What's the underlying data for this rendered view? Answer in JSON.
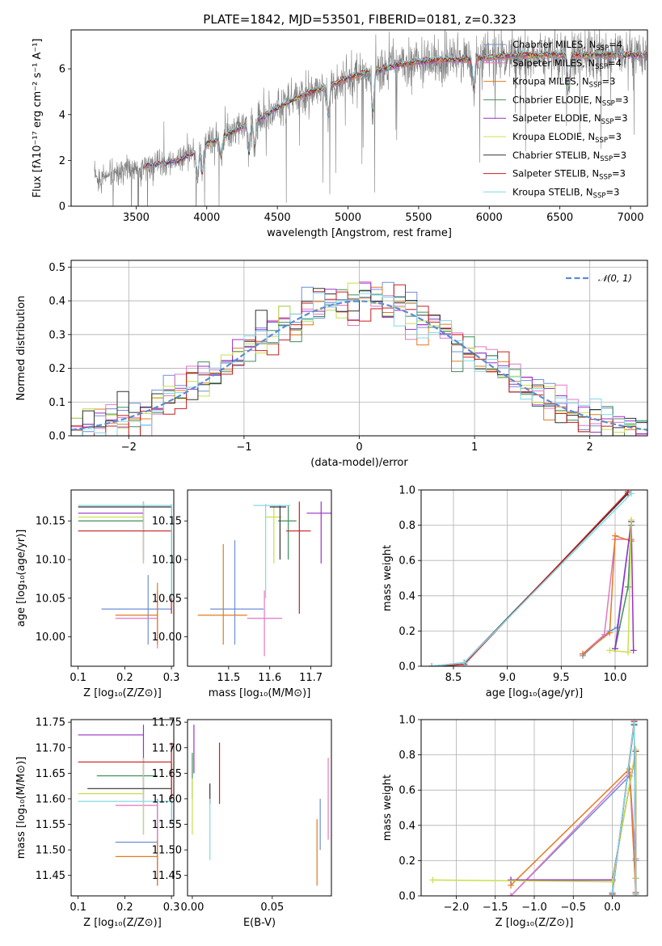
{
  "title": "PLATE=1842, MJD=53501, FIBERID=0181, z=0.323",
  "models": [
    {
      "key": "cm",
      "label": "Chabrier MILES, N",
      "sub": "SSP",
      "tail": "=4",
      "color": "#6d8fd6"
    },
    {
      "key": "sm",
      "label": "Salpeter MILES, N",
      "sub": "SSP",
      "tail": "=4",
      "color": "#e377c2"
    },
    {
      "key": "km",
      "label": "Kroupa MILES, N",
      "sub": "SSP",
      "tail": "=3",
      "color": "#e07b1f"
    },
    {
      "key": "ce",
      "label": "Chabrier ELODIE, N",
      "sub": "SSP",
      "tail": "=3",
      "color": "#3f8f5a"
    },
    {
      "key": "se",
      "label": "Salpeter ELODIE, N",
      "sub": "SSP",
      "tail": "=3",
      "color": "#9b30c8"
    },
    {
      "key": "ke",
      "label": "Kroupa ELODIE, N",
      "sub": "SSP",
      "tail": "=3",
      "color": "#c8e04a"
    },
    {
      "key": "cs",
      "label": "Chabrier STELIB, N",
      "sub": "SSP",
      "tail": "=3",
      "color": "#333333"
    },
    {
      "key": "ss",
      "label": "Salpeter STELIB, N",
      "sub": "SSP",
      "tail": "=3",
      "color": "#c81e1e"
    },
    {
      "key": "ks",
      "label": "Kroupa STELIB, N",
      "sub": "SSP",
      "tail": "=3",
      "color": "#80d8e8"
    }
  ],
  "chart_data": [
    {
      "id": "spectrum",
      "type": "line",
      "xlabel": "wavelength [Angstrom, rest frame]",
      "ylabel": "Flux [fλ10⁻¹⁷ erg cm⁻² s⁻¹ A⁻¹]",
      "xlim": [
        3040,
        7120
      ],
      "ylim": [
        0,
        7.7
      ],
      "xticks": [
        3500,
        4000,
        4500,
        5000,
        5500,
        6000,
        6500,
        7000
      ],
      "yticks": [
        0,
        2,
        4,
        6
      ],
      "grid": false,
      "legend": "top-right",
      "data_color": "#808080",
      "continuum": {
        "x": [
          3200,
          3300,
          3400,
          3500,
          3600,
          3700,
          3800,
          3900,
          4000,
          4100,
          4200,
          4300,
          4400,
          4500,
          4600,
          4700,
          4800,
          4900,
          5000,
          5100,
          5200,
          5300,
          5400,
          5500,
          5600,
          5700,
          5800,
          5900,
          6000,
          6100,
          6200,
          6300,
          6400,
          6500,
          6600,
          6700,
          6800,
          6900,
          7000,
          7100
        ],
        "y": [
          1.2,
          1.35,
          1.5,
          1.6,
          1.8,
          1.9,
          2.0,
          2.3,
          2.7,
          3.0,
          3.3,
          3.6,
          3.9,
          4.3,
          4.6,
          4.9,
          5.1,
          5.3,
          5.6,
          5.8,
          5.9,
          6.1,
          6.2,
          6.3,
          6.35,
          6.4,
          6.4,
          6.45,
          6.5,
          6.55,
          6.6,
          6.6,
          6.6,
          6.6,
          6.6,
          6.6,
          6.6,
          6.6,
          6.6,
          6.6
        ]
      },
      "model_start": [
        3550,
        3550,
        3550,
        3550,
        3550,
        3900,
        3550,
        3550,
        3550
      ]
    },
    {
      "id": "residuals",
      "type": "histogram",
      "xlabel": "(data-model)/error",
      "ylabel": "Normed distribution",
      "xlim": [
        -2.5,
        2.5
      ],
      "ylim": [
        0,
        0.52
      ],
      "xticks": [
        -2,
        -1,
        0,
        1,
        2
      ],
      "yticks": [
        0.0,
        0.1,
        0.2,
        0.3,
        0.4,
        0.5
      ],
      "grid": true,
      "bin_width": 0.1,
      "normal_label": "𝒩(0, 1)",
      "normal_color": "#5b8bd6",
      "legend": "top-right"
    },
    {
      "id": "age-vs-z",
      "type": "errorbar",
      "xlabel": "Z [log₁₀(Z/Z⊙)]",
      "ylabel": "age  [log₁₀(age/yr)]",
      "xlim": [
        0.085,
        0.305
      ],
      "ylim": [
        9.962,
        10.19
      ],
      "xticks": [
        0.1,
        0.2,
        0.3
      ],
      "yticks": [
        10.0,
        10.05,
        10.1,
        10.15
      ],
      "grid": false,
      "points": [
        {
          "m": "cm",
          "x": 0.25,
          "y": 10.036,
          "xerr": [
            0.15,
            0.3
          ],
          "yerr": [
            9.99,
            10.08
          ]
        },
        {
          "m": "sm",
          "x": 0.27,
          "y": 10.024,
          "xerr": [
            0.18,
            0.27
          ],
          "yerr": [
            9.985,
            10.06
          ]
        },
        {
          "m": "km",
          "x": 0.27,
          "y": 10.028,
          "xerr": [
            0.18,
            0.27
          ],
          "yerr": [
            9.99,
            10.07
          ]
        },
        {
          "m": "ce",
          "x": 0.24,
          "y": 10.15,
          "xerr": [
            0.1,
            0.24
          ],
          "yerr": [
            10.095,
            10.175
          ]
        },
        {
          "m": "se",
          "x": 0.24,
          "y": 10.16,
          "xerr": [
            0.1,
            0.24
          ],
          "yerr": [
            10.1,
            10.175
          ]
        },
        {
          "m": "ke",
          "x": 0.24,
          "y": 10.155,
          "xerr": [
            0.1,
            0.24
          ],
          "yerr": [
            10.095,
            10.175
          ]
        },
        {
          "m": "cs",
          "x": 0.3,
          "y": 10.168,
          "xerr": [
            0.1,
            0.3
          ],
          "yerr": [
            10.05,
            10.17
          ]
        },
        {
          "m": "ss",
          "x": 0.3,
          "y": 10.137,
          "xerr": [
            0.1,
            0.3
          ],
          "yerr": [
            10.03,
            10.14
          ]
        },
        {
          "m": "ks",
          "x": 0.3,
          "y": 10.17,
          "xerr": [
            0.1,
            0.3
          ],
          "yerr": [
            10.05,
            10.172
          ]
        }
      ]
    },
    {
      "id": "age-vs-mass",
      "type": "errorbar",
      "xlabel": "mass [log₁₀(M/M⊙)]",
      "ylabel": "",
      "xlim": [
        11.4,
        11.75
      ],
      "ylim": [
        9.962,
        10.19
      ],
      "xticks": [
        11.5,
        11.6,
        11.7
      ],
      "yticks": [
        10.0,
        10.05,
        10.1,
        10.15
      ],
      "grid": false,
      "points": [
        {
          "m": "cm",
          "x": 11.515,
          "y": 10.036,
          "xerr": [
            11.455,
            11.585
          ],
          "yerr": [
            9.99,
            10.125
          ]
        },
        {
          "m": "sm",
          "x": 11.587,
          "y": 10.024,
          "xerr": [
            11.545,
            11.63
          ],
          "yerr": [
            9.975,
            10.06
          ]
        },
        {
          "m": "km",
          "x": 11.487,
          "y": 10.028,
          "xerr": [
            11.425,
            11.545
          ],
          "yerr": [
            9.99,
            10.12
          ]
        },
        {
          "m": "ce",
          "x": 11.645,
          "y": 10.15,
          "xerr": [
            11.62,
            11.665
          ],
          "yerr": [
            10.1,
            10.17
          ]
        },
        {
          "m": "se",
          "x": 11.725,
          "y": 10.16,
          "xerr": [
            11.69,
            11.76
          ],
          "yerr": [
            10.095,
            10.175
          ]
        },
        {
          "m": "ke",
          "x": 11.61,
          "y": 10.155,
          "xerr": [
            11.59,
            11.63
          ],
          "yerr": [
            10.095,
            10.17
          ]
        },
        {
          "m": "cs",
          "x": 11.625,
          "y": 10.168,
          "xerr": [
            11.6,
            11.64
          ],
          "yerr": [
            10.1,
            10.17
          ]
        },
        {
          "m": "ss",
          "x": 11.672,
          "y": 10.137,
          "xerr": [
            11.64,
            11.7
          ],
          "yerr": [
            10.03,
            10.175
          ]
        },
        {
          "m": "ks",
          "x": 11.59,
          "y": 10.17,
          "xerr": [
            11.56,
            11.65
          ],
          "yerr": [
            10.05,
            10.172
          ]
        }
      ]
    },
    {
      "id": "mass-vs-z",
      "type": "errorbar",
      "xlabel": "Z [log₁₀(Z/Z⊙)]",
      "ylabel": "mass [log₁₀(M/M⊙)]",
      "xlim": [
        0.085,
        0.305
      ],
      "ylim": [
        11.41,
        11.755
      ],
      "xticks": [
        0.1,
        0.2,
        0.3
      ],
      "yticks": [
        11.45,
        11.5,
        11.55,
        11.6,
        11.65,
        11.7,
        11.75
      ],
      "grid": false,
      "points": [
        {
          "m": "cm",
          "x": 0.27,
          "y": 11.515,
          "xerr": [
            0.18,
            0.27
          ],
          "yerr": [
            11.43,
            11.6
          ]
        },
        {
          "m": "sm",
          "x": 0.27,
          "y": 11.587,
          "xerr": [
            0.18,
            0.27
          ],
          "yerr": [
            11.43,
            11.6
          ]
        },
        {
          "m": "km",
          "x": 0.27,
          "y": 11.487,
          "xerr": [
            0.18,
            0.27
          ],
          "yerr": [
            11.43,
            11.52
          ]
        },
        {
          "m": "ce",
          "x": 0.24,
          "y": 11.645,
          "xerr": [
            0.14,
            0.27
          ],
          "yerr": [
            11.53,
            11.68
          ]
        },
        {
          "m": "se",
          "x": 0.24,
          "y": 11.725,
          "xerr": [
            0.1,
            0.24
          ],
          "yerr": [
            11.6,
            11.745
          ]
        },
        {
          "m": "ke",
          "x": 0.24,
          "y": 11.61,
          "xerr": [
            0.1,
            0.24
          ],
          "yerr": [
            11.53,
            11.68
          ]
        },
        {
          "m": "cs",
          "x": 0.3,
          "y": 11.62,
          "xerr": [
            0.12,
            0.3
          ],
          "yerr": [
            11.55,
            11.67
          ]
        },
        {
          "m": "ss",
          "x": 0.3,
          "y": 11.672,
          "xerr": [
            0.1,
            0.3
          ],
          "yerr": [
            11.6,
            11.71
          ]
        },
        {
          "m": "ks",
          "x": 0.3,
          "y": 11.595,
          "xerr": [
            0.1,
            0.3
          ],
          "yerr": [
            11.55,
            11.6
          ]
        }
      ]
    },
    {
      "id": "mass-vs-ebv",
      "type": "errorbar",
      "xlabel": "E(B-V)",
      "ylabel": "",
      "xlim": [
        -0.003,
        0.087
      ],
      "ylim": [
        11.41,
        11.755
      ],
      "xticks": [
        0.0,
        0.05
      ],
      "yticks": [
        11.45,
        11.5,
        11.55,
        11.6,
        11.65,
        11.7,
        11.75
      ],
      "grid": false,
      "points": [
        {
          "m": "cm",
          "x": 0.08,
          "y": 11.515,
          "yerr": [
            11.5,
            11.6
          ]
        },
        {
          "m": "sm",
          "x": 0.085,
          "y": 11.587,
          "yerr": [
            11.52,
            11.68
          ]
        },
        {
          "m": "km",
          "x": 0.078,
          "y": 11.487,
          "yerr": [
            11.43,
            11.56
          ]
        },
        {
          "m": "ce",
          "x": 0.0,
          "y": 11.645,
          "yerr": [
            11.6,
            11.69
          ]
        },
        {
          "m": "se",
          "x": 0.001,
          "y": 11.725,
          "yerr": [
            11.65,
            11.745
          ]
        },
        {
          "m": "ke",
          "x": 0.0,
          "y": 11.61,
          "yerr": [
            11.53,
            11.64
          ]
        },
        {
          "m": "cs",
          "x": 0.011,
          "y": 11.62,
          "yerr": [
            11.59,
            11.63
          ]
        },
        {
          "m": "ss",
          "x": 0.017,
          "y": 11.672,
          "yerr": [
            11.59,
            11.71
          ]
        },
        {
          "m": "ks",
          "x": 0.011,
          "y": 11.595,
          "yerr": [
            11.48,
            11.6
          ]
        }
      ]
    },
    {
      "id": "weight-vs-age",
      "type": "line",
      "xlabel": "age  [log₁₀(age/yr)]",
      "ylabel": "mass weight",
      "xlim": [
        8.2,
        10.3
      ],
      "ylim": [
        0,
        1.0
      ],
      "xticks": [
        8.5,
        9.0,
        9.5,
        10.0
      ],
      "yticks": [
        0.0,
        0.2,
        0.4,
        0.6,
        0.8,
        1.0
      ],
      "grid": true,
      "series": [
        {
          "m": "cm",
          "x": [
            9.7,
            9.95,
            10.02,
            10.15
          ],
          "y": [
            0.06,
            0.2,
            0.22,
            0.82
          ]
        },
        {
          "m": "sm",
          "x": [
            9.7,
            9.9,
            10.0,
            10.15
          ],
          "y": [
            0.07,
            0.18,
            0.72,
            0.72
          ]
        },
        {
          "m": "km",
          "x": [
            9.7,
            9.95,
            10.0,
            10.15
          ],
          "y": [
            0.07,
            0.19,
            0.74,
            0.71
          ]
        },
        {
          "m": "ce",
          "x": [
            10.0,
            10.12,
            10.15
          ],
          "y": [
            0.1,
            0.45,
            0.8
          ]
        },
        {
          "m": "se",
          "x": [
            10.0,
            10.15,
            10.17
          ],
          "y": [
            0.1,
            0.82,
            0.09
          ]
        },
        {
          "m": "ke",
          "x": [
            9.95,
            10.12,
            10.15
          ],
          "y": [
            0.09,
            0.08,
            0.83
          ]
        },
        {
          "m": "cs",
          "x": [
            8.3,
            8.6,
            10.12
          ],
          "y": [
            0.0,
            0.02,
            0.98
          ]
        },
        {
          "m": "ss",
          "x": [
            8.3,
            8.6,
            10.12
          ],
          "y": [
            0.0,
            0.01,
            0.99
          ]
        },
        {
          "m": "ks",
          "x": [
            8.3,
            8.6,
            10.15
          ],
          "y": [
            0.0,
            0.02,
            0.98
          ]
        }
      ]
    },
    {
      "id": "weight-vs-z",
      "type": "line",
      "xlabel": "Z [log₁₀(Z/Z⊙)]",
      "ylabel": "mass weight",
      "xlim": [
        -2.45,
        0.45
      ],
      "ylim": [
        0,
        1.0
      ],
      "xticks": [
        -2.0,
        -1.5,
        -1.0,
        -0.5,
        0.0
      ],
      "yticks": [
        0.0,
        0.2,
        0.4,
        0.6,
        0.8,
        1.0
      ],
      "grid": true,
      "series": [
        {
          "m": "cm",
          "x": [
            -1.3,
            0.22,
            0.3,
            0.3
          ],
          "y": [
            0.0,
            0.68,
            0.2,
            0.01
          ]
        },
        {
          "m": "sm",
          "x": [
            -1.3,
            0.22,
            0.3,
            0.3
          ],
          "y": [
            0.0,
            0.7,
            0.21,
            0.02
          ]
        },
        {
          "m": "km",
          "x": [
            -1.3,
            0.22,
            0.3
          ],
          "y": [
            0.06,
            0.72,
            0.02
          ]
        },
        {
          "m": "ce",
          "x": [
            -1.3,
            0.0,
            0.3,
            0.3
          ],
          "y": [
            0.09,
            0.09,
            0.82,
            0.1
          ]
        },
        {
          "m": "se",
          "x": [
            -1.3,
            0.0,
            0.3,
            0.3
          ],
          "y": [
            0.09,
            0.09,
            0.82,
            0.1
          ]
        },
        {
          "m": "ke",
          "x": [
            -2.3,
            0.0,
            0.3,
            0.3
          ],
          "y": [
            0.09,
            0.08,
            0.83,
            0.1
          ]
        },
        {
          "m": "cs",
          "x": [
            0.0,
            0.28,
            0.3
          ],
          "y": [
            0.02,
            0.97,
            0.01
          ]
        },
        {
          "m": "ss",
          "x": [
            0.0,
            0.28,
            0.3
          ],
          "y": [
            0.01,
            0.99,
            0.01
          ]
        },
        {
          "m": "ks",
          "x": [
            0.0,
            0.28,
            0.3
          ],
          "y": [
            0.02,
            0.98,
            0.01
          ]
        }
      ]
    }
  ]
}
